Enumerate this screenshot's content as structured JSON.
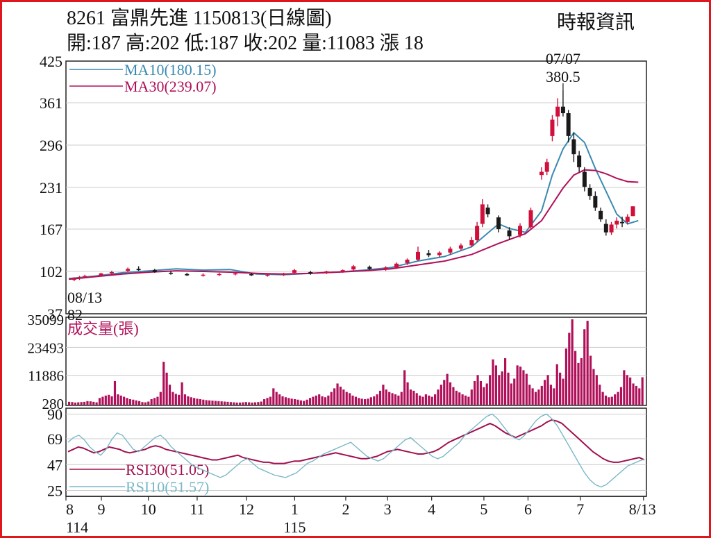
{
  "header": {
    "title": "8261  富鼎先進 1150813(日線圖)",
    "source": "時報資訊",
    "stats": "開:187 高:202 低:187 收:202 量:11083 漲 18"
  },
  "colors": {
    "frame": "#e0161e",
    "up": "#d0103a",
    "down": "#1a1a1a",
    "ma10": "#3a8ab0",
    "ma30": "#b0105a",
    "volume": "#b0105a",
    "rsi10": "#7ab8c8",
    "rsi30": "#a0104e",
    "grid": "#cccccc"
  },
  "chart_data": [
    {
      "type": "candlestick",
      "panel": "price",
      "y_ticks": [
        "425",
        "361",
        "296",
        "231",
        "167",
        "102",
        "37"
      ],
      "ylim": [
        37,
        425
      ],
      "grid": true,
      "annotations": [
        {
          "text": "07/07",
          "x": "07/07"
        },
        {
          "text": "380.5",
          "x": "07/07",
          "y": 380.5
        },
        {
          "text": "08/13",
          "x": "08/13"
        },
        {
          "text": "82",
          "x": "08/13",
          "y": 82
        }
      ],
      "series": [
        {
          "name": "MA10(180.15)",
          "label": "MA10(180.15)",
          "kind": "line",
          "points": [
            [
              0,
              91
            ],
            [
              5,
              95
            ],
            [
              10,
              100
            ],
            [
              15,
              103
            ],
            [
              20,
              106
            ],
            [
              25,
              104
            ],
            [
              30,
              105
            ],
            [
              35,
              98
            ],
            [
              40,
              97
            ],
            [
              45,
              99
            ],
            [
              47,
              100
            ],
            [
              50,
              101
            ],
            [
              55,
              104
            ],
            [
              60,
              108
            ],
            [
              65,
              118
            ],
            [
              70,
              125
            ],
            [
              75,
              140
            ],
            [
              80,
              175
            ],
            [
              82,
              168
            ],
            [
              85,
              162
            ],
            [
              88,
              195
            ],
            [
              90,
              250
            ],
            [
              92,
              290
            ],
            [
              94,
              315
            ],
            [
              96,
              300
            ],
            [
              98,
              260
            ],
            [
              100,
              225
            ],
            [
              102,
              190
            ],
            [
              104,
              175
            ],
            [
              106,
              180
            ]
          ]
        },
        {
          "name": "MA30(239.07)",
          "label": "MA30(239.07)",
          "kind": "line",
          "points": [
            [
              0,
              90
            ],
            [
              5,
              94
            ],
            [
              10,
              98
            ],
            [
              15,
              101
            ],
            [
              20,
              103
            ],
            [
              25,
              102
            ],
            [
              30,
              101
            ],
            [
              35,
              99
            ],
            [
              40,
              98
            ],
            [
              45,
              99
            ],
            [
              50,
              101
            ],
            [
              55,
              103
            ],
            [
              60,
              106
            ],
            [
              65,
              112
            ],
            [
              70,
              118
            ],
            [
              75,
              128
            ],
            [
              80,
              145
            ],
            [
              85,
              160
            ],
            [
              88,
              180
            ],
            [
              90,
              205
            ],
            [
              92,
              230
            ],
            [
              94,
              250
            ],
            [
              96,
              258
            ],
            [
              98,
              257
            ],
            [
              100,
              252
            ],
            [
              102,
              245
            ],
            [
              104,
              240
            ],
            [
              106,
              239
            ]
          ]
        }
      ],
      "candles": [
        {
          "x": 1,
          "o": 89,
          "h": 93,
          "l": 87,
          "c": 91
        },
        {
          "x": 2,
          "o": 92,
          "h": 95,
          "l": 89,
          "c": 93
        },
        {
          "x": 3,
          "o": 94,
          "h": 97,
          "l": 92,
          "c": 95
        },
        {
          "x": 6,
          "o": 96,
          "h": 100,
          "l": 94,
          "c": 99
        },
        {
          "x": 8,
          "o": 100,
          "h": 103,
          "l": 97,
          "c": 101
        },
        {
          "x": 11,
          "o": 103,
          "h": 108,
          "l": 101,
          "c": 106
        },
        {
          "x": 13,
          "o": 106,
          "h": 110,
          "l": 103,
          "c": 104
        },
        {
          "x": 16,
          "o": 104,
          "h": 106,
          "l": 100,
          "c": 101
        },
        {
          "x": 19,
          "o": 100,
          "h": 103,
          "l": 97,
          "c": 99
        },
        {
          "x": 22,
          "o": 98,
          "h": 100,
          "l": 95,
          "c": 96
        },
        {
          "x": 25,
          "o": 96,
          "h": 99,
          "l": 94,
          "c": 97
        },
        {
          "x": 28,
          "o": 97,
          "h": 100,
          "l": 95,
          "c": 98
        },
        {
          "x": 31,
          "o": 98,
          "h": 101,
          "l": 96,
          "c": 99
        },
        {
          "x": 34,
          "o": 98,
          "h": 100,
          "l": 95,
          "c": 96
        },
        {
          "x": 37,
          "o": 96,
          "h": 99,
          "l": 94,
          "c": 97
        },
        {
          "x": 40,
          "o": 97,
          "h": 100,
          "l": 95,
          "c": 99
        },
        {
          "x": 42,
          "o": 100,
          "h": 106,
          "l": 98,
          "c": 104
        },
        {
          "x": 45,
          "o": 101,
          "h": 103,
          "l": 97,
          "c": 99
        },
        {
          "x": 48,
          "o": 100,
          "h": 103,
          "l": 98,
          "c": 102
        },
        {
          "x": 51,
          "o": 102,
          "h": 105,
          "l": 100,
          "c": 104
        },
        {
          "x": 53,
          "o": 105,
          "h": 112,
          "l": 103,
          "c": 110
        },
        {
          "x": 56,
          "o": 109,
          "h": 111,
          "l": 104,
          "c": 106
        },
        {
          "x": 59,
          "o": 106,
          "h": 110,
          "l": 103,
          "c": 108
        },
        {
          "x": 61,
          "o": 108,
          "h": 116,
          "l": 106,
          "c": 114
        },
        {
          "x": 63,
          "o": 115,
          "h": 122,
          "l": 112,
          "c": 120
        },
        {
          "x": 65,
          "o": 120,
          "h": 140,
          "l": 118,
          "c": 132
        },
        {
          "x": 67,
          "o": 130,
          "h": 135,
          "l": 124,
          "c": 127
        },
        {
          "x": 69,
          "o": 127,
          "h": 133,
          "l": 124,
          "c": 131
        },
        {
          "x": 71,
          "o": 131,
          "h": 140,
          "l": 128,
          "c": 137
        },
        {
          "x": 73,
          "o": 137,
          "h": 145,
          "l": 134,
          "c": 142
        },
        {
          "x": 75,
          "o": 142,
          "h": 155,
          "l": 139,
          "c": 150
        },
        {
          "x": 76,
          "o": 150,
          "h": 178,
          "l": 147,
          "c": 172
        },
        {
          "x": 77,
          "o": 175,
          "h": 213,
          "l": 170,
          "c": 205
        },
        {
          "x": 78,
          "o": 200,
          "h": 205,
          "l": 185,
          "c": 190
        },
        {
          "x": 80,
          "o": 185,
          "h": 188,
          "l": 162,
          "c": 167
        },
        {
          "x": 82,
          "o": 165,
          "h": 170,
          "l": 150,
          "c": 156
        },
        {
          "x": 84,
          "o": 158,
          "h": 176,
          "l": 154,
          "c": 172
        },
        {
          "x": 86,
          "o": 170,
          "h": 200,
          "l": 166,
          "c": 196
        },
        {
          "x": 88,
          "o": 250,
          "h": 262,
          "l": 243,
          "c": 255
        },
        {
          "x": 89,
          "o": 255,
          "h": 275,
          "l": 250,
          "c": 270
        },
        {
          "x": 90,
          "o": 310,
          "h": 342,
          "l": 302,
          "c": 335
        },
        {
          "x": 91,
          "o": 340,
          "h": 368,
          "l": 325,
          "c": 355
        },
        {
          "x": 92,
          "o": 355,
          "h": 380.5,
          "l": 340,
          "c": 345
        },
        {
          "x": 93,
          "o": 345,
          "h": 350,
          "l": 300,
          "c": 310
        },
        {
          "x": 94,
          "o": 305,
          "h": 315,
          "l": 270,
          "c": 282
        },
        {
          "x": 95,
          "o": 280,
          "h": 287,
          "l": 255,
          "c": 262
        },
        {
          "x": 96,
          "o": 255,
          "h": 262,
          "l": 225,
          "c": 232
        },
        {
          "x": 97,
          "o": 230,
          "h": 236,
          "l": 212,
          "c": 218
        },
        {
          "x": 98,
          "o": 218,
          "h": 225,
          "l": 195,
          "c": 200
        },
        {
          "x": 99,
          "o": 195,
          "h": 200,
          "l": 178,
          "c": 182
        },
        {
          "x": 100,
          "o": 175,
          "h": 182,
          "l": 157,
          "c": 162
        },
        {
          "x": 101,
          "o": 162,
          "h": 178,
          "l": 158,
          "c": 174
        },
        {
          "x": 102,
          "o": 174,
          "h": 185,
          "l": 168,
          "c": 180
        },
        {
          "x": 103,
          "o": 178,
          "h": 186,
          "l": 170,
          "c": 176
        },
        {
          "x": 104,
          "o": 178,
          "h": 190,
          "l": 174,
          "c": 186
        },
        {
          "x": 105,
          "o": 187,
          "h": 202,
          "l": 187,
          "c": 202
        }
      ]
    },
    {
      "type": "bar",
      "panel": "volume",
      "label": "成交量(張)",
      "y_ticks": [
        "35099",
        "23493",
        "11886",
        "280"
      ],
      "ylim": [
        280,
        35099
      ],
      "values": [
        900,
        800,
        600,
        700,
        800,
        900,
        1200,
        1100,
        900,
        700,
        2500,
        3000,
        3500,
        3800,
        3200,
        9500,
        4000,
        3500,
        3000,
        2500,
        2000,
        1800,
        1500,
        1200,
        800,
        700,
        1000,
        2000,
        2500,
        3000,
        5000,
        17500,
        13000,
        8000,
        5000,
        4200,
        3800,
        9000,
        4000,
        3200,
        2800,
        2500,
        2200,
        2000,
        1800,
        1600,
        1500,
        1400,
        1300,
        1200,
        1100,
        1000,
        900,
        800,
        700,
        600,
        600,
        700,
        800,
        700,
        600,
        700,
        800,
        1000,
        2000,
        2500,
        3000,
        6500,
        5000,
        4000,
        3200,
        2800,
        2500,
        2200,
        2000,
        1800,
        1500,
        1300,
        1800,
        2500,
        3000,
        3500,
        4000,
        3200,
        2800,
        3500,
        5000,
        6500,
        8500,
        7200,
        6000,
        5000,
        4500,
        3500,
        3000,
        2500,
        2200,
        2000,
        2200,
        2800,
        3200,
        4000,
        5500,
        8000,
        6000,
        5000,
        4500,
        4000,
        3500,
        5000,
        14000,
        9000,
        6000,
        5500,
        4500,
        3500,
        3000,
        4000,
        3500,
        3000,
        4000,
        6000,
        8000,
        10000,
        12500,
        9000,
        7000,
        5500,
        4800,
        4000,
        3500,
        3000,
        6000,
        9500,
        12000,
        9500,
        7000,
        8500,
        12000,
        18500,
        16000,
        12000,
        13500,
        19000,
        13000,
        8500,
        10500,
        16000,
        15500,
        14000,
        12500,
        8000,
        6500,
        5000,
        6000,
        7500,
        10000,
        12000,
        8000,
        6500,
        16500,
        13000,
        10500,
        23000,
        29500,
        35099,
        22000,
        17000,
        19000,
        31000,
        34500,
        20000,
        14500,
        12000,
        8000,
        5000,
        3500,
        2800,
        3000,
        4000,
        5000,
        7000,
        14000,
        12000,
        11000,
        8500,
        7500,
        6500,
        11083
      ]
    },
    {
      "type": "line",
      "panel": "rsi",
      "y_ticks": [
        "90",
        "69",
        "47",
        "25"
      ],
      "ylim": [
        20,
        95
      ],
      "series": [
        {
          "name": "RSI30(51.05)",
          "label": "RSI30(51.05)",
          "values": [
            58,
            60,
            62,
            61,
            59,
            57,
            58,
            60,
            62,
            61,
            60,
            58,
            57,
            58,
            59,
            60,
            62,
            63,
            62,
            60,
            59,
            58,
            57,
            56,
            55,
            54,
            53,
            52,
            51,
            51,
            52,
            53,
            54,
            55,
            53,
            52,
            51,
            50,
            49,
            49,
            48,
            48,
            48,
            49,
            50,
            50,
            51,
            52,
            53,
            54,
            55,
            56,
            57,
            56,
            55,
            54,
            53,
            52,
            52,
            53,
            54,
            56,
            58,
            59,
            60,
            59,
            58,
            57,
            56,
            56,
            57,
            58,
            60,
            63,
            66,
            68,
            70,
            72,
            74,
            76,
            78,
            80,
            82,
            80,
            77,
            74,
            72,
            70,
            72,
            74,
            76,
            78,
            80,
            83,
            85,
            84,
            82,
            78,
            74,
            70,
            66,
            62,
            58,
            55,
            52,
            50,
            49,
            49,
            50,
            51,
            52,
            53,
            51.05
          ]
        },
        {
          "name": "RSI10(51.57)",
          "label": "RSI10(51.57)",
          "values": [
            66,
            70,
            72,
            68,
            62,
            58,
            55,
            60,
            68,
            74,
            72,
            66,
            60,
            58,
            62,
            66,
            70,
            72,
            68,
            62,
            58,
            54,
            50,
            46,
            44,
            42,
            40,
            38,
            36,
            38,
            42,
            46,
            50,
            52,
            48,
            44,
            42,
            40,
            38,
            37,
            36,
            38,
            40,
            44,
            48,
            50,
            53,
            56,
            58,
            60,
            62,
            64,
            66,
            62,
            58,
            54,
            52,
            50,
            52,
            56,
            60,
            64,
            68,
            70,
            66,
            62,
            58,
            54,
            52,
            54,
            58,
            62,
            66,
            72,
            76,
            80,
            84,
            88,
            90,
            86,
            80,
            74,
            70,
            68,
            72,
            78,
            84,
            88,
            90,
            86,
            80,
            72,
            64,
            56,
            48,
            40,
            34,
            30,
            28,
            30,
            34,
            38,
            42,
            46,
            48,
            50,
            51.57
          ]
        }
      ]
    }
  ],
  "x_axis": {
    "ticks": [
      {
        "label": "8",
        "frac": 0.0
      },
      {
        "label": "9",
        "frac": 0.061
      },
      {
        "label": "10",
        "frac": 0.142
      },
      {
        "label": "11",
        "frac": 0.226
      },
      {
        "label": "12",
        "frac": 0.311
      },
      {
        "label": "1",
        "frac": 0.394
      },
      {
        "label": "2",
        "frac": 0.482
      },
      {
        "label": "3",
        "frac": 0.554
      },
      {
        "label": "4",
        "frac": 0.63
      },
      {
        "label": "5",
        "frac": 0.72
      },
      {
        "label": "6",
        "frac": 0.796
      },
      {
        "label": "7",
        "frac": 0.886
      },
      {
        "label": "8/13",
        "frac": 0.995
      }
    ],
    "year_labels": [
      {
        "label": "114",
        "frac": 0.0
      },
      {
        "label": "115",
        "frac": 0.394
      }
    ]
  }
}
